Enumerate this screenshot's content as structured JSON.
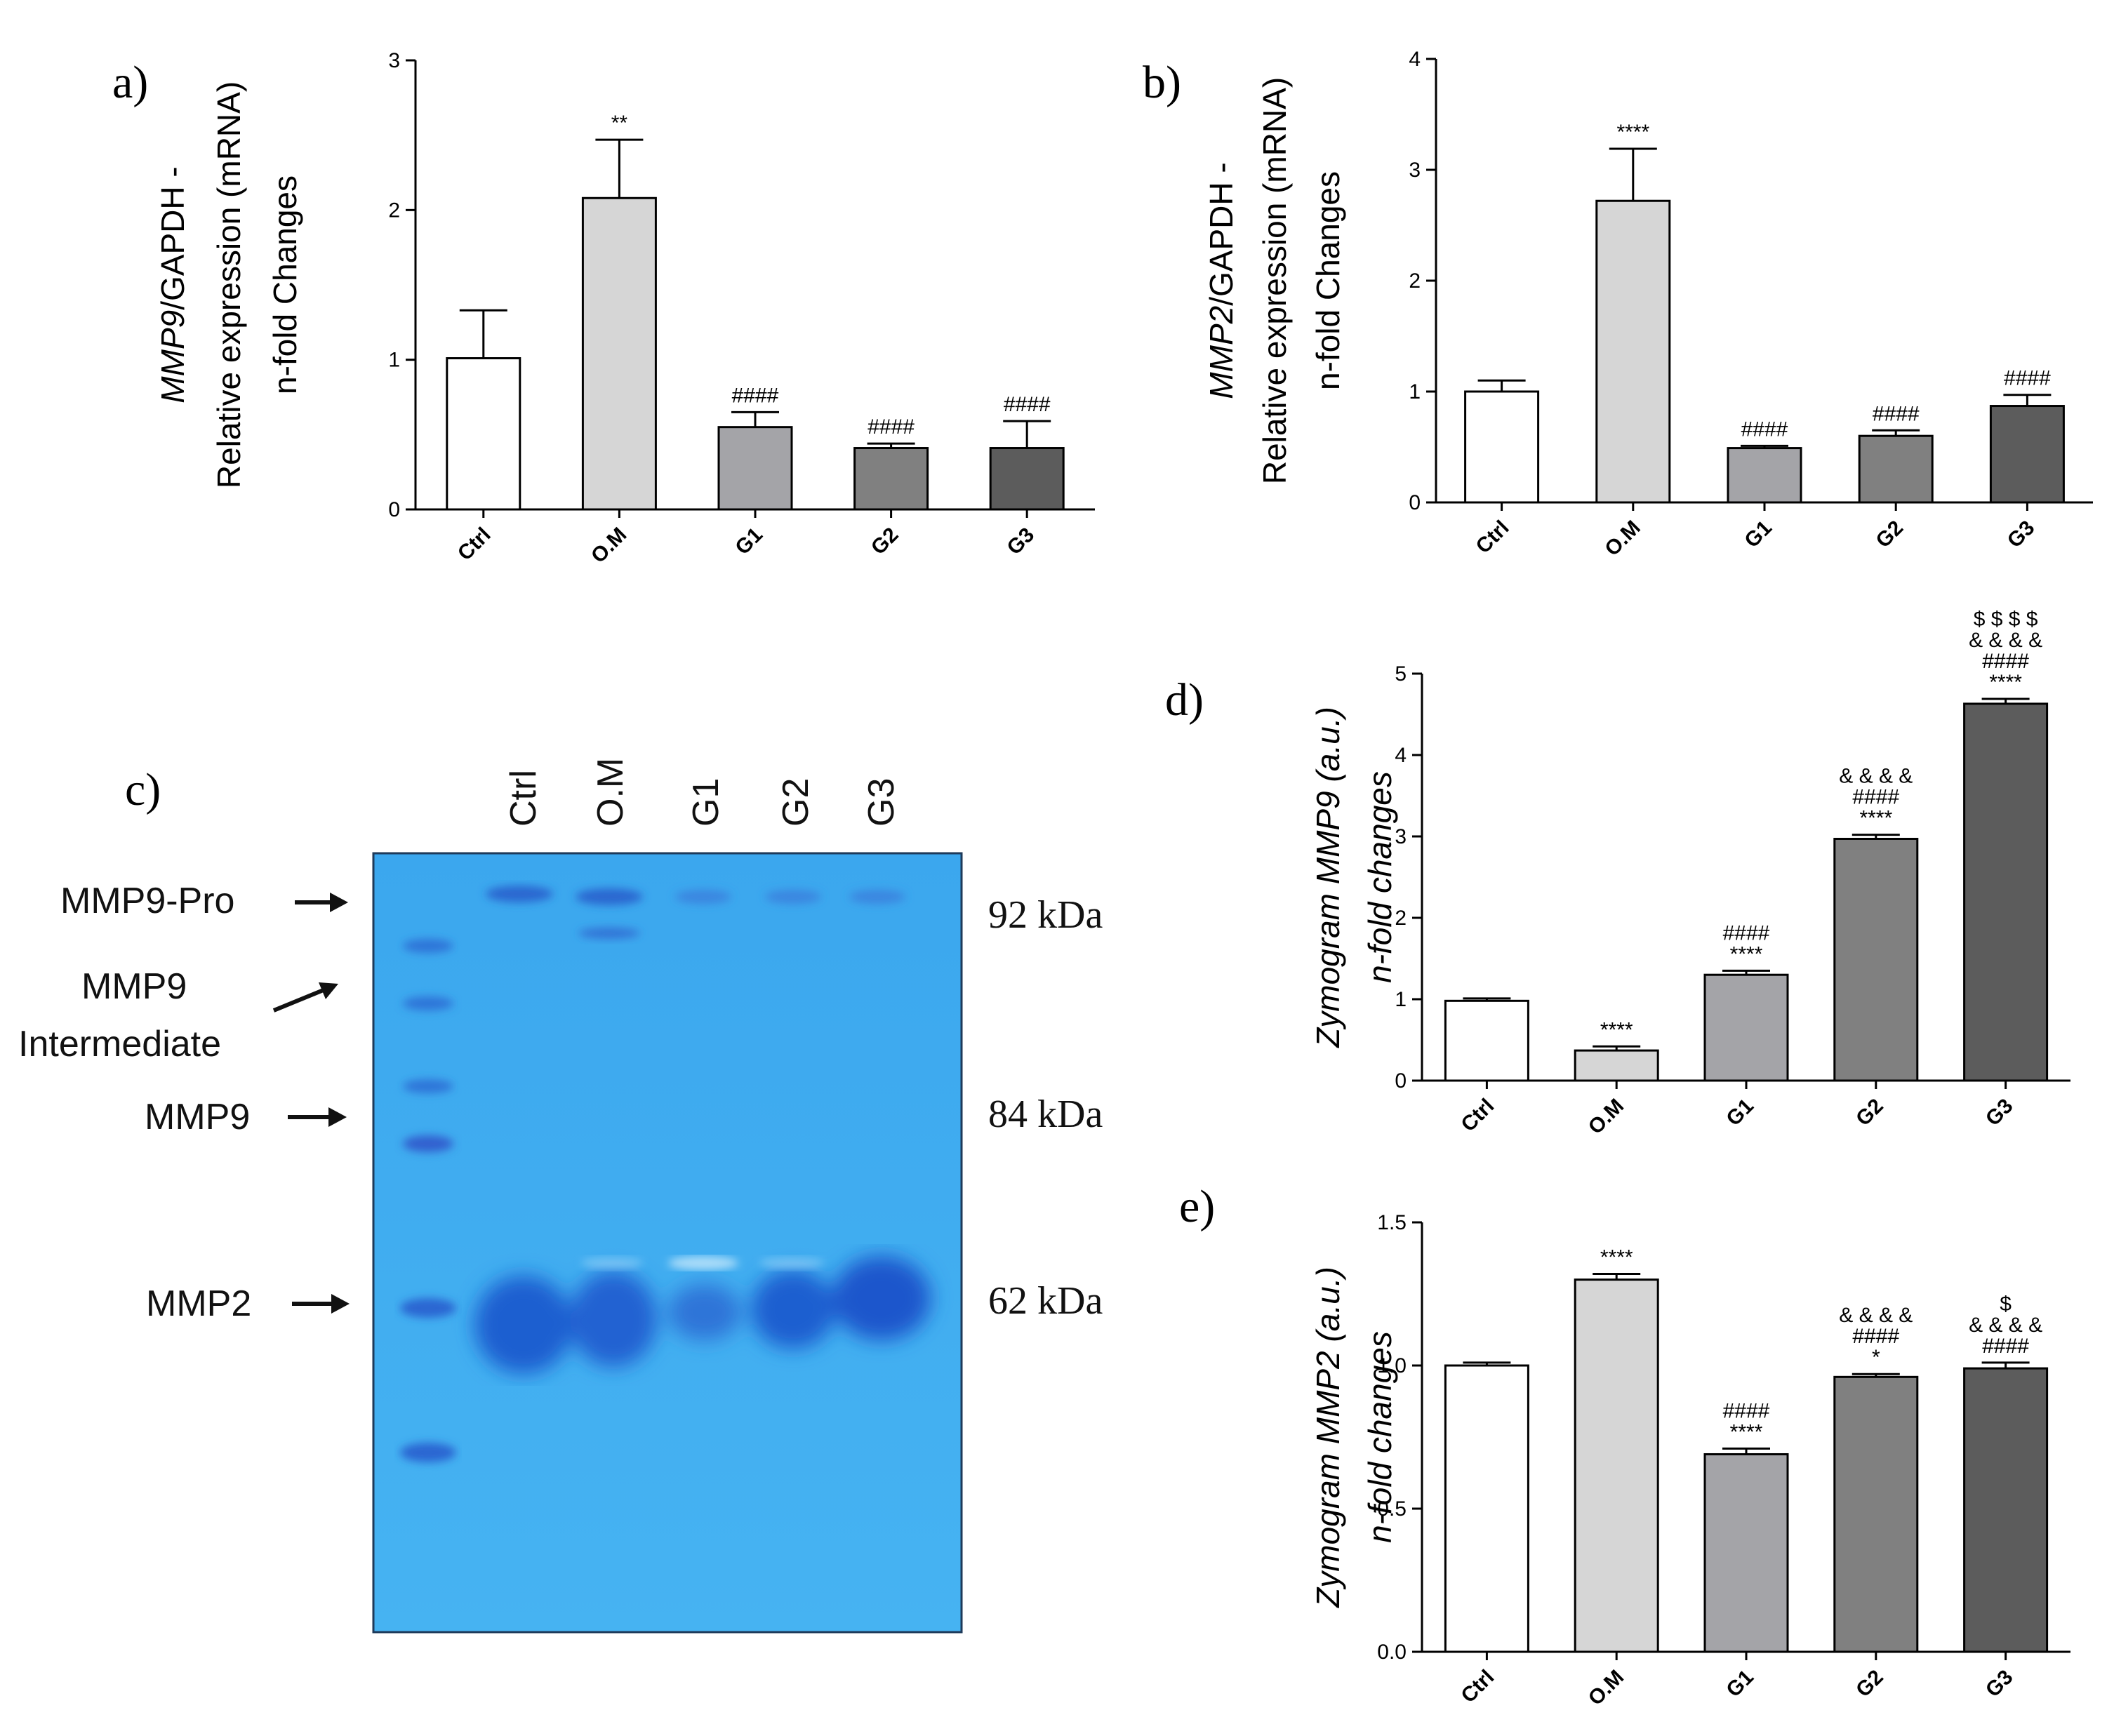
{
  "panels": {
    "a": "a)",
    "b": "b)",
    "c": "c)",
    "d": "d)",
    "e": "e)"
  },
  "chart_data": [
    {
      "id": "a",
      "type": "bar",
      "ylabel_lines": [
        {
          "parts": [
            {
              "text": "MMP9",
              "italic": true
            },
            {
              "text": "/GAPDH -",
              "italic": false
            }
          ]
        },
        {
          "parts": [
            {
              "text": "Relative expression (mRNA)",
              "italic": false
            }
          ]
        },
        {
          "parts": [
            {
              "text": "n-fold Changes",
              "italic": false
            }
          ]
        }
      ],
      "categories": [
        "Ctrl",
        "O.M",
        "G1",
        "G2",
        "G3"
      ],
      "values": [
        1.01,
        2.08,
        0.55,
        0.41,
        0.41
      ],
      "errors": [
        0.32,
        0.39,
        0.1,
        0.03,
        0.18
      ],
      "significance": [
        [],
        [
          "**"
        ],
        [
          "####"
        ],
        [
          "####"
        ],
        [
          "####"
        ]
      ],
      "ylim": [
        0,
        3
      ],
      "yticks": [
        0,
        1,
        2,
        3
      ],
      "ytick_labels": [
        "0",
        "1",
        "2",
        "3"
      ],
      "fills": [
        "#ffffff",
        "#d6d6d6",
        "#a4a4a8",
        "#808080",
        "#5c5c5c"
      ]
    },
    {
      "id": "b",
      "type": "bar",
      "ylabel_lines": [
        {
          "parts": [
            {
              "text": "MMP2",
              "italic": true
            },
            {
              "text": "/GAPDH -",
              "italic": false
            }
          ]
        },
        {
          "parts": [
            {
              "text": "Relative expression (mRNA)",
              "italic": false
            }
          ]
        },
        {
          "parts": [
            {
              "text": "n-fold Changes",
              "italic": false
            }
          ]
        }
      ],
      "categories": [
        "Ctrl",
        "O.M",
        "G1",
        "G2",
        "G3"
      ],
      "values": [
        1.0,
        2.72,
        0.49,
        0.6,
        0.87
      ],
      "errors": [
        0.1,
        0.47,
        0.02,
        0.05,
        0.1
      ],
      "significance": [
        [],
        [
          "****"
        ],
        [
          "####"
        ],
        [
          "####"
        ],
        [
          "####"
        ]
      ],
      "ylim": [
        0,
        4
      ],
      "yticks": [
        0,
        1,
        2,
        3,
        4
      ],
      "ytick_labels": [
        "0",
        "1",
        "2",
        "3",
        "4"
      ],
      "fills": [
        "#ffffff",
        "#d6d6d6",
        "#a4a4a8",
        "#808080",
        "#5c5c5c"
      ]
    },
    {
      "id": "d",
      "type": "bar",
      "ylabel_lines": [
        {
          "parts": [
            {
              "text": "Zymogram MMP9 (a.u.)",
              "italic": true
            }
          ]
        },
        {
          "parts": [
            {
              "text": "n-fold changes",
              "italic": true
            }
          ]
        }
      ],
      "categories": [
        "Ctrl",
        "O.M",
        "G1",
        "G2",
        "G3"
      ],
      "values": [
        0.98,
        0.37,
        1.3,
        2.97,
        4.63
      ],
      "errors": [
        0.03,
        0.05,
        0.05,
        0.05,
        0.06
      ],
      "significance": [
        [],
        [
          "****"
        ],
        [
          "####",
          "****"
        ],
        [
          "& & & &",
          "####",
          "****"
        ],
        [
          "$ $ $ $",
          "& & & &",
          "####",
          "****"
        ]
      ],
      "ylim": [
        0,
        5
      ],
      "yticks": [
        0,
        1,
        2,
        3,
        4,
        5
      ],
      "ytick_labels": [
        "0",
        "1",
        "2",
        "3",
        "4",
        "5"
      ],
      "fills": [
        "#ffffff",
        "#d6d6d6",
        "#a4a4a8",
        "#808080",
        "#5c5c5c"
      ]
    },
    {
      "id": "e",
      "type": "bar",
      "ylabel_lines": [
        {
          "parts": [
            {
              "text": "Zymogram MMP2 (a.u.)",
              "italic": true
            }
          ]
        },
        {
          "parts": [
            {
              "text": "n-fold changes",
              "italic": true
            }
          ]
        }
      ],
      "categories": [
        "Ctrl",
        "O.M",
        "G1",
        "G2",
        "G3"
      ],
      "values": [
        1.0,
        1.3,
        0.69,
        0.96,
        0.99
      ],
      "errors": [
        0.01,
        0.02,
        0.02,
        0.01,
        0.02
      ],
      "significance": [
        [],
        [
          "****"
        ],
        [
          "####",
          "****"
        ],
        [
          "& & & &",
          "####",
          "*"
        ],
        [
          "$",
          "& & & &",
          "####"
        ]
      ],
      "ylim": [
        0,
        1.5
      ],
      "yticks": [
        0,
        0.5,
        1.0,
        1.5
      ],
      "ytick_labels": [
        "0.0",
        "0.5",
        "1.0",
        "1.5"
      ],
      "fills": [
        "#ffffff",
        "#d6d6d6",
        "#a4a4a8",
        "#808080",
        "#5c5c5c"
      ]
    }
  ],
  "gel": {
    "lanes": [
      "Ctrl",
      "O.M",
      "G1",
      "G2",
      "G3"
    ],
    "markers": [
      "MMP9-Pro",
      "MMP9",
      "Intermediate",
      "MMP9",
      "MMP2"
    ],
    "kda": [
      "92 kDa",
      "84 kDa",
      "62 kDa"
    ],
    "colors": {
      "background": "#3aa6ec",
      "band": "#1f5fd0",
      "ladder": "#2a6fd4"
    }
  }
}
